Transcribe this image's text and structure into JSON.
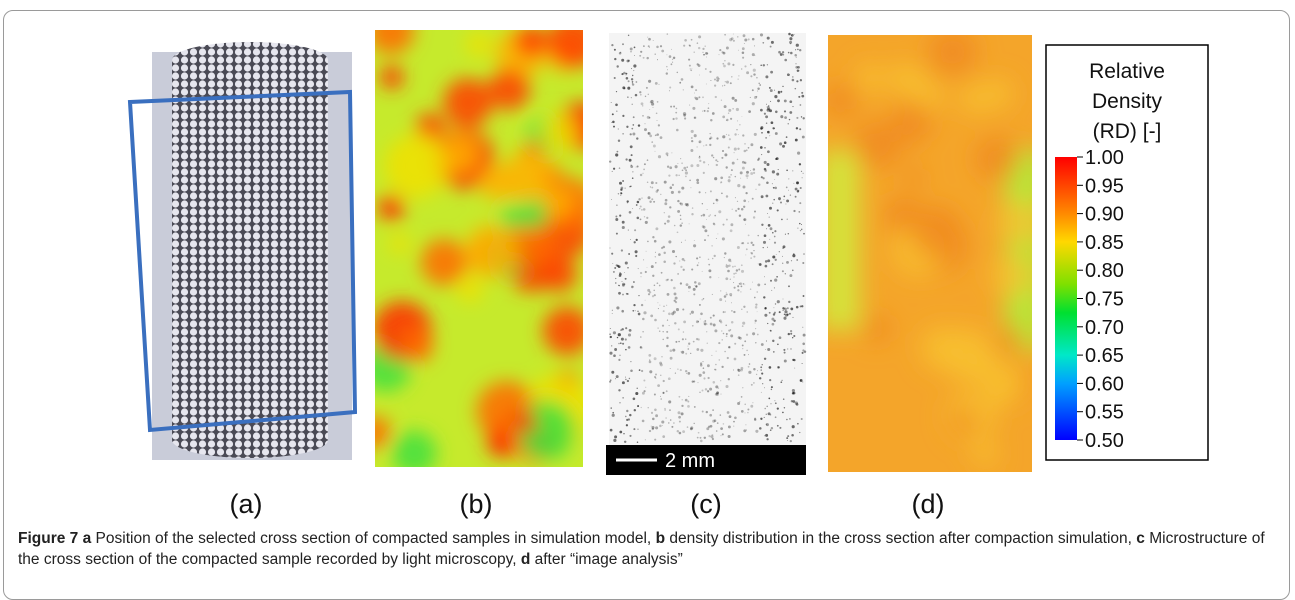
{
  "panels": {
    "labels": [
      "(a)",
      "(b)",
      "(c)",
      "(d)"
    ],
    "scale_bar": "2 mm"
  },
  "colorbar": {
    "title": [
      "Relative",
      "Density",
      "(RD) [-]"
    ],
    "ticks": [
      "1.00",
      "0.95",
      "0.90",
      "0.85",
      "0.80",
      "0.75",
      "0.70",
      "0.65",
      "0.60",
      "0.55",
      "0.50"
    ]
  },
  "caption": {
    "label": "Figure 7",
    "parts": [
      {
        "key": "a",
        "text": "Position of the selected cross section of compacted samples in simulation model,"
      },
      {
        "key": "b",
        "text": "density distribution in the cross section after compaction simulation,"
      },
      {
        "key": "c",
        "text": "Microstructure of the cross section of the compacted sample recorded by light microscopy,"
      },
      {
        "key": "d",
        "text": "after “image analysis”"
      }
    ]
  }
}
